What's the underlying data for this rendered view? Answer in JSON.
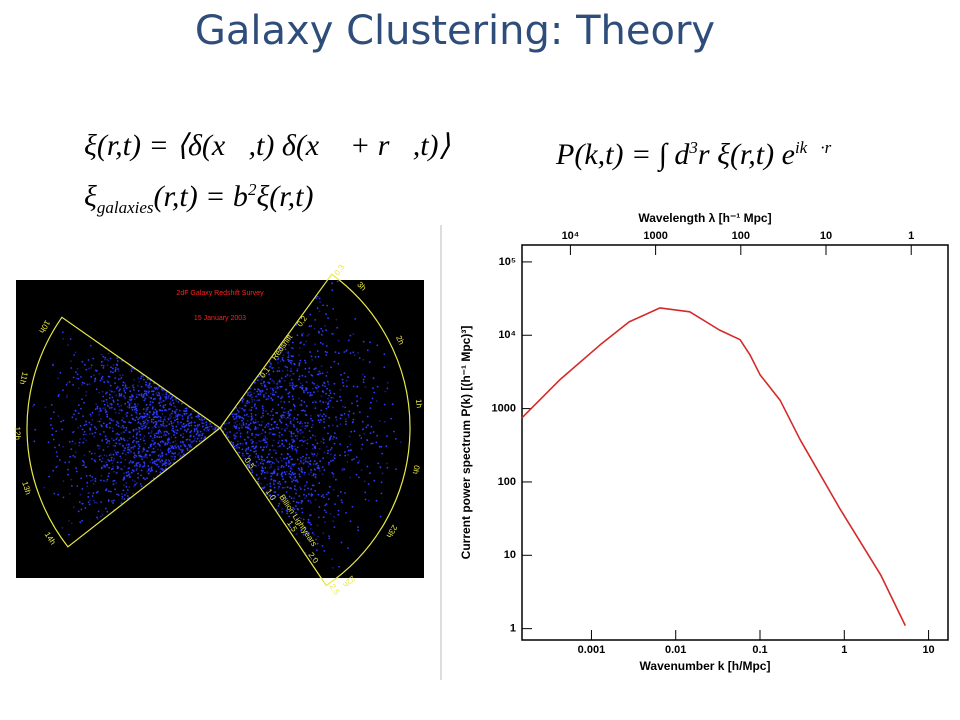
{
  "title": "Galaxy Clustering: Theory",
  "equations": {
    "correlation": "ξ(r,t) = ⟨δ(x⃗,t) δ(x⃗ + r⃗,t)⟩",
    "bias": [
      "ξ",
      "galaxies",
      "(r,t) = b",
      "2",
      "ξ(r,t)"
    ],
    "power": [
      "P(k,t) = ∫ d",
      "3",
      "r ξ(r,t) e",
      "ik⃗·r⃗"
    ]
  },
  "survey": {
    "title": "2dF Galaxy Redshift Survey",
    "date": "15 January 2003",
    "redshift_label": "Redshift",
    "distance_label": "Billion Lightyears",
    "redshift_ticks": [
      "0.1",
      "0.2",
      "0.3"
    ],
    "distance_ticks": [
      "0.5",
      "1.0",
      "1.5",
      "2.0",
      "2.5"
    ],
    "ra_left": [
      "10h",
      "11h",
      "12h",
      "13h",
      "14h"
    ],
    "ra_right": [
      "3h",
      "2h",
      "1h",
      "0h",
      "23h",
      "22h"
    ]
  },
  "chart_data": {
    "type": "line",
    "x_label": "Wavenumber k [h/Mpc]",
    "y_label": "Current power spectrum P(k) [(h⁻¹ Mpc)³]",
    "x2_label": "Wavelength λ [h⁻¹ Mpc]",
    "x": [
      0.00015,
      0.00042,
      0.00127,
      0.0028,
      0.0065,
      0.0147,
      0.033,
      0.058,
      0.076,
      0.1,
      0.173,
      0.3,
      0.9,
      2.7,
      5.3
    ],
    "values": [
      750,
      2460,
      7400,
      15200,
      23600,
      20900,
      11800,
      8700,
      5400,
      2900,
      1300,
      375,
      42,
      5.4,
      1.1
    ],
    "color": "#d42a2a",
    "log_x": true,
    "log_y": true,
    "xlim": [
      0.00015,
      17
    ],
    "xticks": [
      0.001,
      0.01,
      0.1,
      1,
      10
    ],
    "ylim": [
      0.7,
      170000
    ],
    "yticks": [
      1,
      10,
      100,
      1000,
      {
        "value": 10000,
        "label": "10⁴"
      },
      {
        "value": 100000,
        "label": "10⁵"
      }
    ],
    "x2lim": [
      37000,
      0.37
    ],
    "x2ticks": [
      {
        "value": 10000,
        "label": "10⁴"
      },
      1000,
      100,
      10,
      1
    ]
  }
}
